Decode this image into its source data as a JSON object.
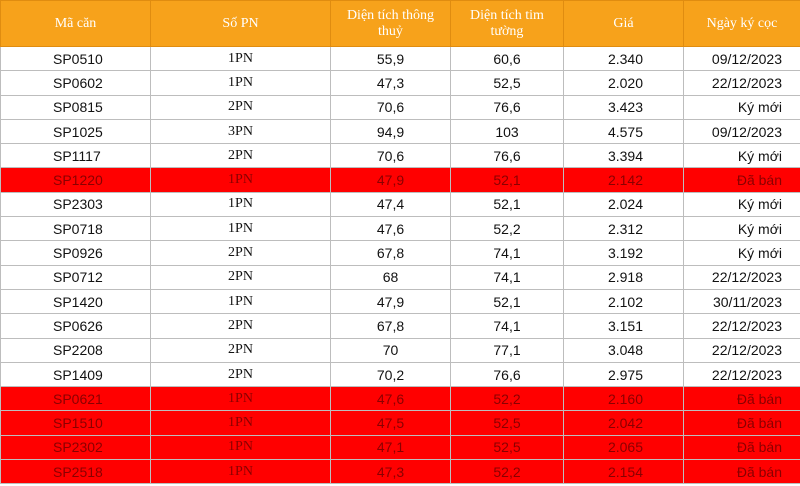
{
  "table": {
    "header": [
      "Mã căn",
      "Số PN",
      "Diện tích thông thuỷ",
      "Diện tích tim tường",
      "Giá",
      "Ngày ký cọc"
    ],
    "rows": [
      [
        "SP0510",
        "1PN",
        "55,9",
        "60,6",
        "2.340",
        "09/12/2023"
      ],
      [
        "SP0602",
        "1PN",
        "47,3",
        "52,5",
        "2.020",
        "22/12/2023"
      ],
      [
        "SP0815",
        "2PN",
        "70,6",
        "76,6",
        "3.423",
        "Ký mới"
      ],
      [
        "SP1025",
        "3PN",
        "94,9",
        "103",
        "4.575",
        "09/12/2023"
      ],
      [
        "SP1117",
        "2PN",
        "70,6",
        "76,6",
        "3.394",
        "Ký mới"
      ],
      [
        "SP1220",
        "1PN",
        "47,9",
        "52,1",
        "2.142",
        "Đã bán"
      ],
      [
        "SP2303",
        "1PN",
        "47,4",
        "52,1",
        "2.024",
        "Ký mới"
      ],
      [
        "SP0718",
        "1PN",
        "47,6",
        "52,2",
        "2.312",
        "Ký mới"
      ],
      [
        "SP0926",
        "2PN",
        "67,8",
        "74,1",
        "3.192",
        "Ký mới"
      ],
      [
        "SP0712",
        "2PN",
        "68",
        "74,1",
        "2.918",
        "22/12/2023"
      ],
      [
        "SP1420",
        "1PN",
        "47,9",
        "52,1",
        "2.102",
        "30/11/2023"
      ],
      [
        "SP0626",
        "2PN",
        "67,8",
        "74,1",
        "3.151",
        "22/12/2023"
      ],
      [
        "SP2208",
        "2PN",
        "70",
        "77,1",
        "3.048",
        "22/12/2023"
      ],
      [
        "SP1409",
        "2PN",
        "70,2",
        "76,6",
        "2.975",
        "22/12/2023"
      ],
      [
        "SP0621",
        "1PN",
        "47,6",
        "52,2",
        "2.160",
        "Đã bán"
      ],
      [
        "SP1510",
        "1PN",
        "47,5",
        "52,5",
        "2.042",
        "Đã bán"
      ],
      [
        "SP2302",
        "1PN",
        "47,1",
        "52,5",
        "2.065",
        "Đã bán"
      ],
      [
        "SP2518",
        "1PN",
        "47,3",
        "52,2",
        "2.154",
        "Đã bán"
      ]
    ]
  }
}
